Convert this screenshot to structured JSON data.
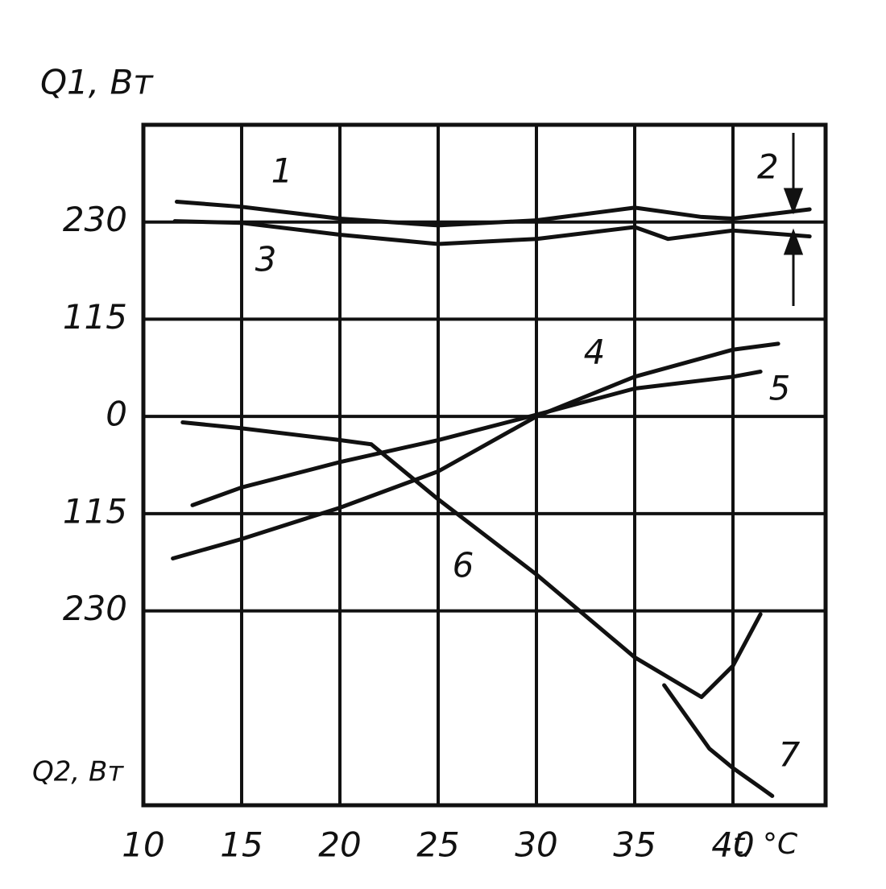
{
  "chart_data": {
    "type": "line",
    "ylabel": "Q1, Вт",
    "ylabel2": "Q2, Вт",
    "xlabel": "t, °C",
    "xlim": [
      10,
      45
    ],
    "xticks": [
      10,
      15,
      20,
      25,
      30,
      35,
      40
    ],
    "ylim": [
      -460,
      345
    ],
    "yticks": [
      230,
      115,
      0,
      {
        "value": -115,
        "label": "115"
      },
      {
        "value": -230,
        "label": "230"
      }
    ],
    "grid": true,
    "color": "#111111",
    "annotations": [
      "2"
    ],
    "series": [
      {
        "name": "1",
        "x": [
          11.7,
          15,
          20,
          25,
          30,
          35,
          38.4,
          40,
          43.9
        ],
        "values": [
          254,
          248,
          234,
          226,
          232,
          247,
          236,
          234,
          245
        ]
      },
      {
        "name": "3",
        "x": [
          11.6,
          15,
          20,
          25,
          30,
          35,
          36.7,
          40,
          43.9
        ],
        "values": [
          231,
          229,
          215,
          204,
          210,
          224,
          210,
          220,
          213
        ]
      },
      {
        "name": "4",
        "x": [
          11.5,
          15,
          20,
          25,
          30,
          35,
          40,
          42.3
        ],
        "values": [
          -168,
          -145,
          -108,
          -65,
          0,
          47,
          79,
          86
        ]
      },
      {
        "name": "5",
        "x": [
          12.5,
          15,
          20,
          25,
          30,
          35,
          40,
          41.4
        ],
        "values": [
          -105,
          -84,
          -54,
          -28,
          2,
          33,
          47,
          53
        ]
      },
      {
        "name": "6",
        "x": [
          12,
          15,
          20,
          21.6,
          25,
          30,
          35,
          38.4,
          40,
          41.4
        ],
        "values": [
          -7,
          -14,
          -28,
          -33,
          -98,
          -187,
          -285,
          -332,
          -295,
          -234
        ]
      },
      {
        "name": "7",
        "x": [
          36.5,
          38.8,
          40,
          41.4,
          42
        ],
        "values": [
          -318,
          -393,
          -416,
          -439,
          -449
        ]
      }
    ]
  }
}
